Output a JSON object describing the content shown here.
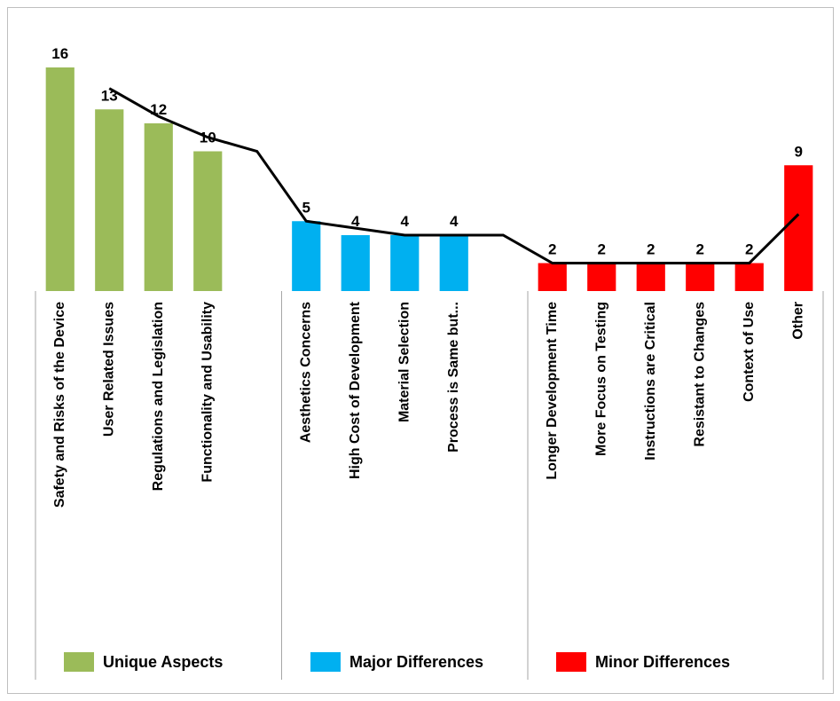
{
  "chart_data": {
    "type": "bar",
    "categories": [
      "Safety and Risks of the Device",
      "User Related Issues",
      "Regulations and Legislation",
      "Functionality and Usability",
      null,
      "Aesthetics Concerns",
      "High Cost of Development",
      "Material Selection",
      "Process is Same but...",
      null,
      "Longer Development Time",
      "More Focus on Testing",
      "Instructions are Critical",
      "Resistant to Changes",
      "Context of Use",
      "Other"
    ],
    "series": [
      {
        "name": "Unique Aspects",
        "color": "#9bbb59",
        "values": [
          16,
          13,
          12,
          10,
          null,
          null,
          null,
          null,
          null,
          null,
          null,
          null,
          null,
          null,
          null,
          null
        ]
      },
      {
        "name": "Major Differences",
        "color": "#00b0f0",
        "values": [
          null,
          null,
          null,
          null,
          null,
          5,
          4,
          4,
          4,
          null,
          null,
          null,
          null,
          null,
          null,
          null
        ]
      },
      {
        "name": "Minor Differences",
        "color": "#ff0000",
        "values": [
          null,
          null,
          null,
          null,
          null,
          null,
          null,
          null,
          null,
          null,
          2,
          2,
          2,
          2,
          2,
          9
        ]
      }
    ],
    "trend": {
      "color": "#000000",
      "values": [
        null,
        14.5,
        12.5,
        11,
        10,
        5,
        4.5,
        4,
        4,
        4,
        2,
        2,
        2,
        2,
        2,
        5.5
      ]
    },
    "ylim": [
      0,
      16
    ]
  }
}
